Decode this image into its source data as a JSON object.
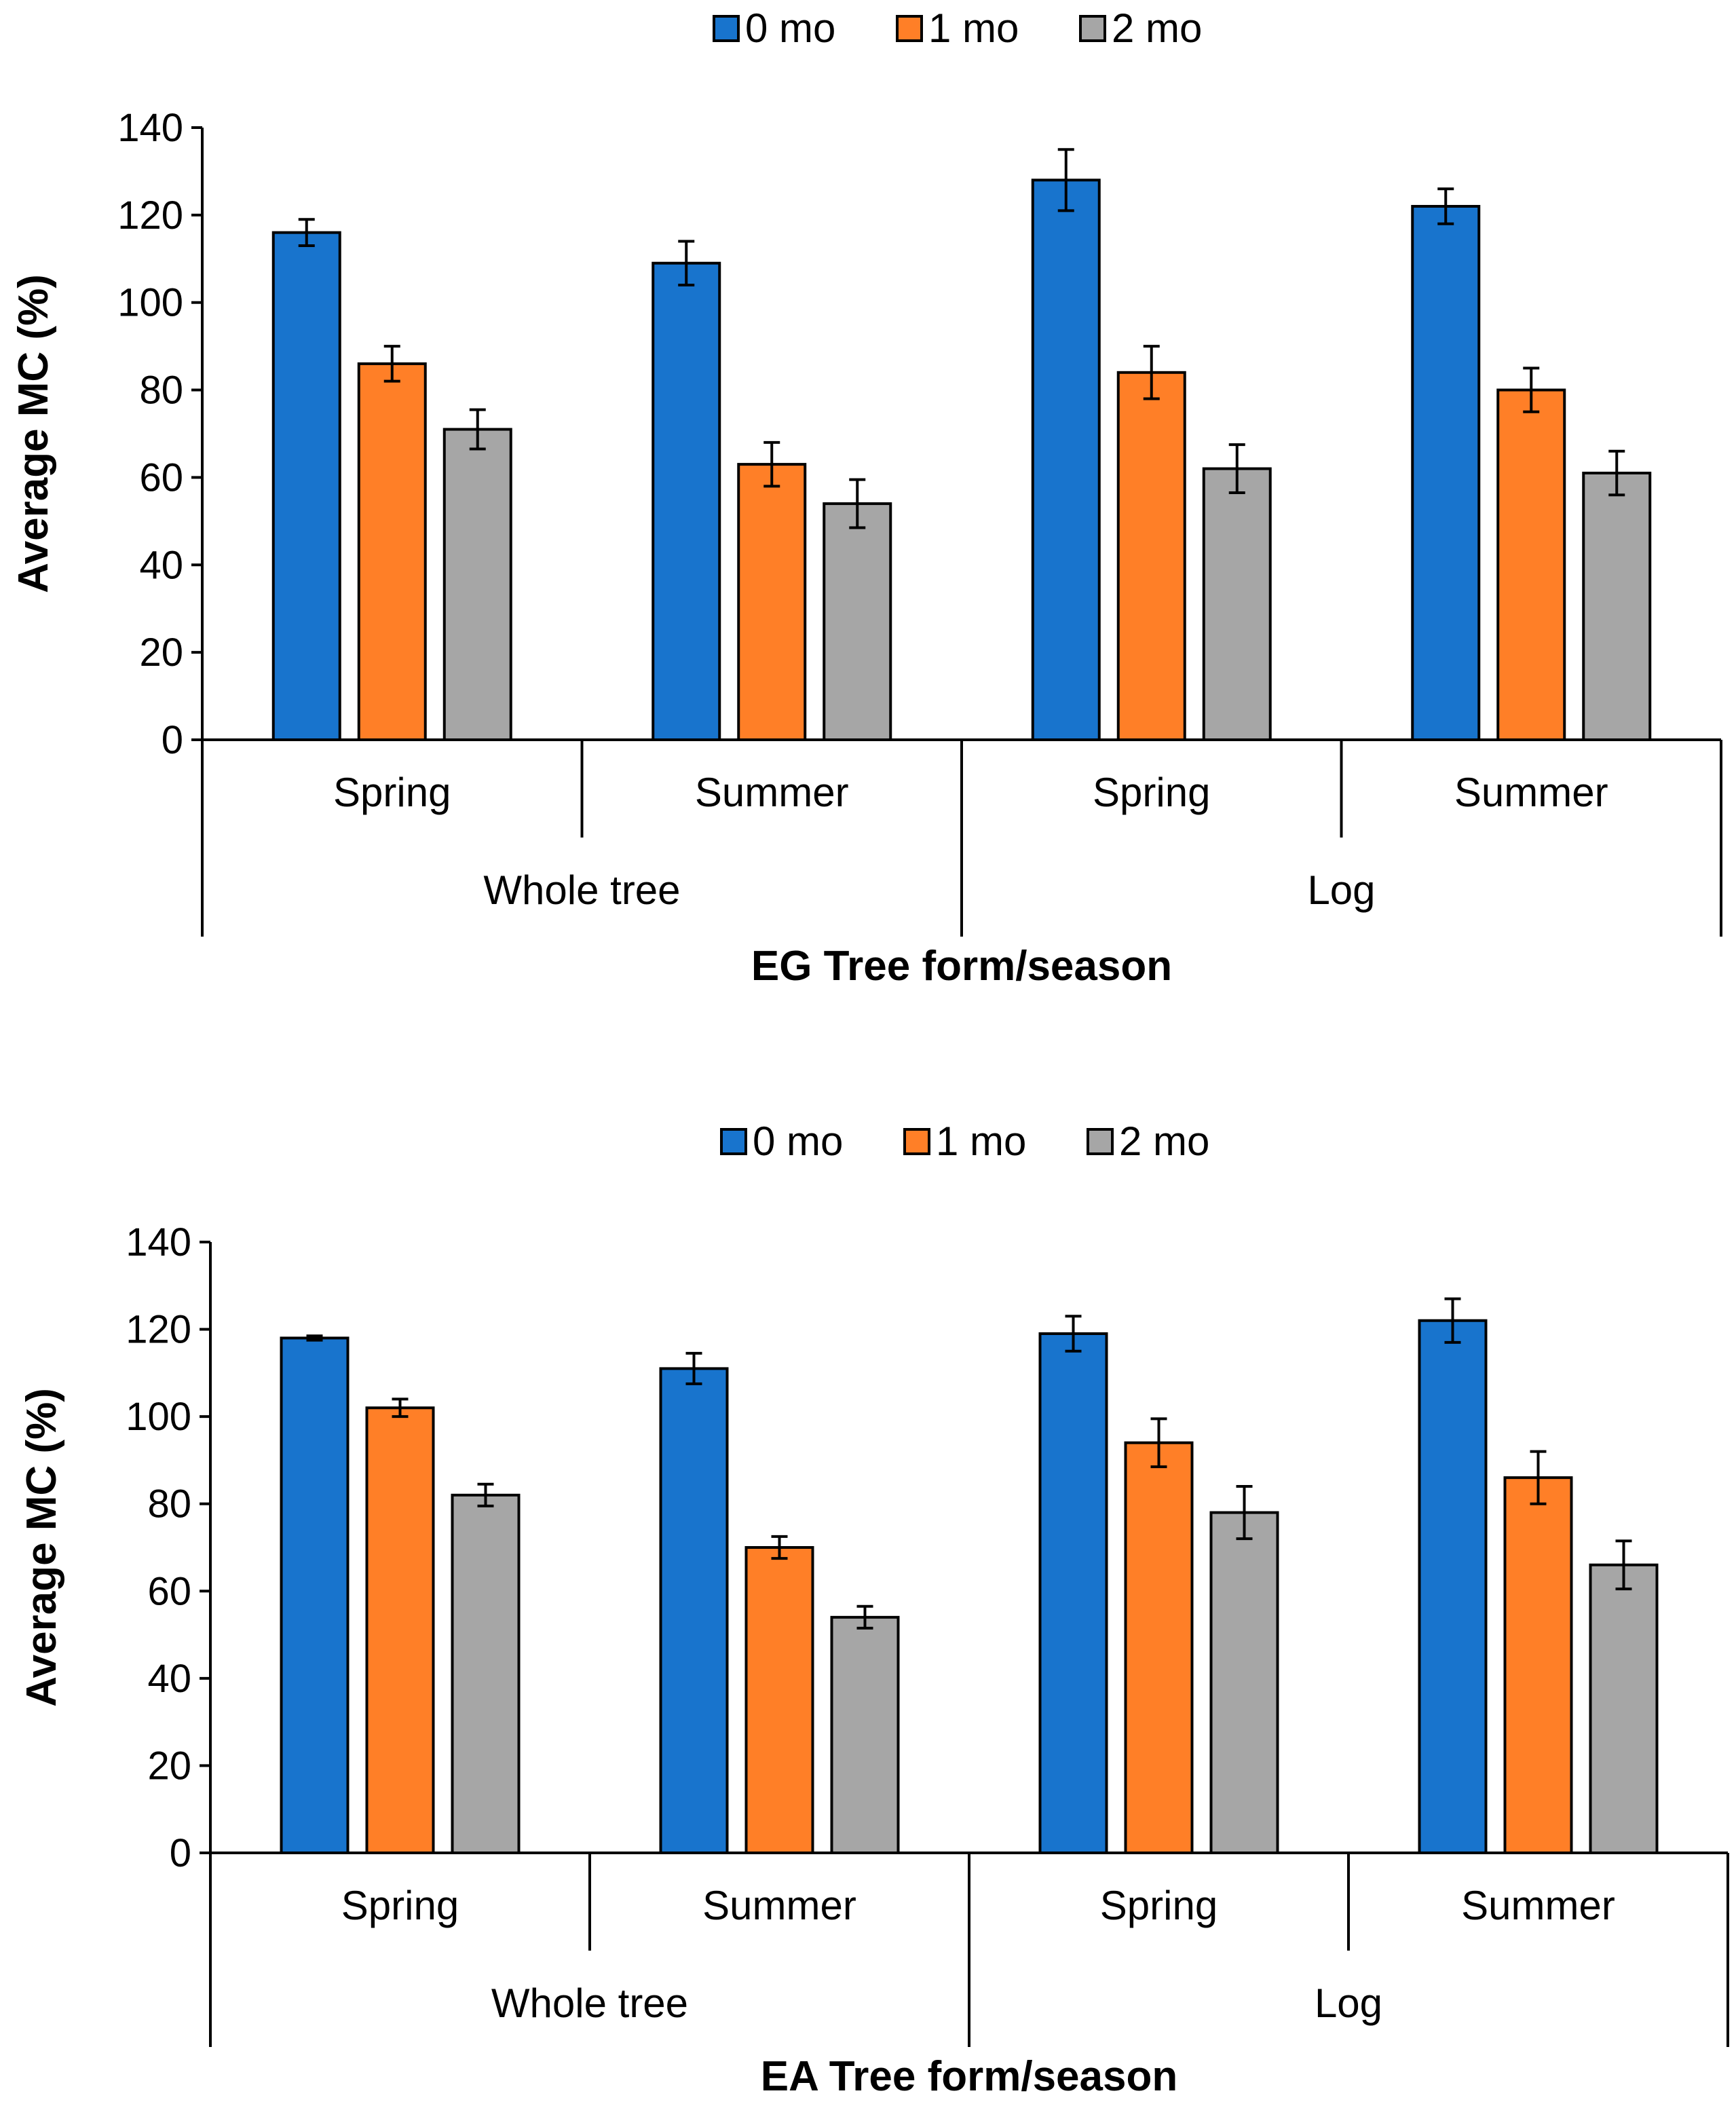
{
  "colors": {
    "0 mo": "#1874cd",
    "1 mo": "#ff7f27",
    "2 mo": "#a6a6a6"
  },
  "chart_data": [
    {
      "type": "bar",
      "title": "",
      "xlabel": "EG Tree form/season",
      "ylabel": "Average MC (%)",
      "ylim": [
        0,
        140
      ],
      "yticks": [
        0,
        20,
        40,
        60,
        80,
        100,
        120,
        140
      ],
      "legend": "top-center",
      "groups": [
        "Whole tree",
        "Log"
      ],
      "categories": [
        "Spring",
        "Summer",
        "Spring",
        "Summer"
      ],
      "series": [
        {
          "name": "0 mo",
          "values": [
            116,
            109,
            128,
            122
          ],
          "errors": [
            3,
            5,
            7,
            4
          ]
        },
        {
          "name": "1 mo",
          "values": [
            86,
            63,
            84,
            80
          ],
          "errors": [
            4,
            5,
            6,
            5
          ]
        },
        {
          "name": "2 mo",
          "values": [
            71,
            54,
            62,
            61
          ],
          "errors": [
            4.5,
            5.5,
            5.5,
            5
          ]
        }
      ]
    },
    {
      "type": "bar",
      "title": "",
      "xlabel": "EA Tree form/season",
      "ylabel": "Average MC (%)",
      "ylim": [
        0,
        140
      ],
      "yticks": [
        0,
        20,
        40,
        60,
        80,
        100,
        120,
        140
      ],
      "legend": "top-center",
      "groups": [
        "Whole tree",
        "Log"
      ],
      "categories": [
        "Spring",
        "Summer",
        "Spring",
        "Summer"
      ],
      "series": [
        {
          "name": "0 mo",
          "values": [
            118,
            111,
            119,
            122
          ],
          "errors": [
            0.5,
            3.5,
            4,
            5
          ]
        },
        {
          "name": "1 mo",
          "values": [
            102,
            70,
            94,
            86
          ],
          "errors": [
            2,
            2.5,
            5.5,
            6
          ]
        },
        {
          "name": "2 mo",
          "values": [
            82,
            54,
            78,
            66
          ],
          "errors": [
            2.5,
            2.5,
            6,
            5.5
          ]
        }
      ]
    }
  ]
}
